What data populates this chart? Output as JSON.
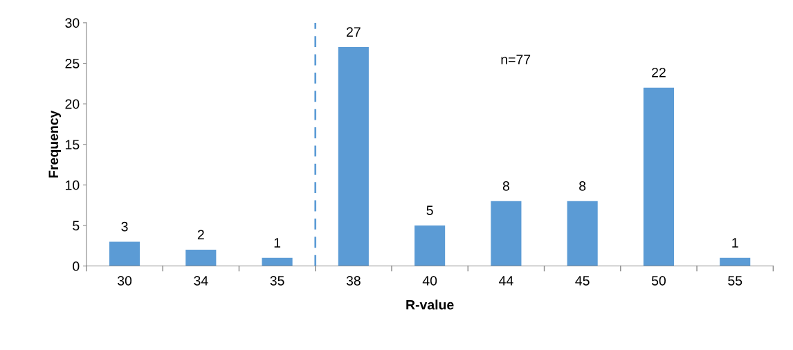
{
  "chart_data": {
    "type": "bar",
    "xlabel": "R-value",
    "ylabel": "Frequency",
    "categories": [
      "30",
      "34",
      "35",
      "38",
      "40",
      "44",
      "45",
      "50",
      "55"
    ],
    "values": [
      3,
      2,
      1,
      27,
      5,
      8,
      8,
      22,
      1
    ],
    "color": "#5b9bd5",
    "ylim": [
      0,
      30
    ],
    "yticks": [
      0,
      5,
      10,
      15,
      20,
      25,
      30
    ],
    "grid": false,
    "data_labels": true,
    "annotations": [
      "n=77"
    ]
  }
}
